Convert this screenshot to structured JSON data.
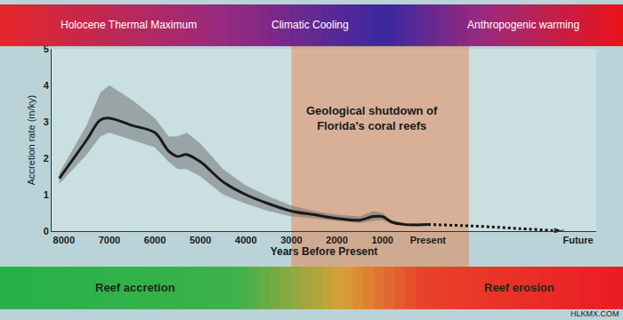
{
  "chart_data": {
    "type": "line",
    "xlabel": "Years Before Present",
    "ylabel": "Accretion rate (m/ky)",
    "xlim": [
      8270,
      -3700
    ],
    "xticks": [
      8000,
      7000,
      6000,
      5000,
      4000,
      3000,
      2000,
      1000,
      {
        "value": 0,
        "label": "Present"
      },
      {
        "value": -3300,
        "label": "Future"
      }
    ],
    "ylim": [
      0,
      5
    ],
    "yticks": [
      0,
      1,
      2,
      3,
      4,
      5
    ],
    "grid": false,
    "series": [
      {
        "color": "#1a1a1a",
        "x": [
          8100,
          7500,
          7200,
          7000,
          6500,
          6000,
          5700,
          5500,
          5300,
          5000,
          4500,
          4000,
          3500,
          3000,
          2500,
          2000,
          1500,
          1200,
          1000,
          800,
          500,
          200,
          0
        ],
        "values": [
          1.45,
          2.5,
          3.05,
          3.1,
          2.9,
          2.7,
          2.2,
          2.05,
          2.1,
          1.9,
          1.35,
          1.0,
          0.75,
          0.55,
          0.45,
          0.35,
          0.3,
          0.4,
          0.4,
          0.25,
          0.18,
          0.17,
          0.18
        ],
        "upper": [
          1.6,
          2.9,
          3.8,
          4.0,
          3.6,
          3.1,
          2.6,
          2.6,
          2.7,
          2.4,
          1.7,
          1.25,
          0.95,
          0.7,
          0.55,
          0.45,
          0.4,
          0.55,
          0.5,
          0.3,
          0.22,
          0.2,
          0.2
        ],
        "lower": [
          1.3,
          2.1,
          2.6,
          2.7,
          2.5,
          2.3,
          1.9,
          1.7,
          1.7,
          1.5,
          1.0,
          0.75,
          0.55,
          0.4,
          0.35,
          0.28,
          0.22,
          0.28,
          0.3,
          0.2,
          0.15,
          0.14,
          0.16
        ]
      },
      {
        "color": "#111111",
        "line_style": "dotted",
        "marker": "arrow",
        "x": [
          0,
          -1000,
          -2000,
          -3000
        ],
        "values": [
          0.18,
          0.14,
          0.07,
          0
        ]
      }
    ],
    "shaded_region": {
      "x": [
        3000,
        -900
      ],
      "text": [
        "Geological shutdown of",
        "Florida's coral reefs"
      ]
    },
    "top_labels": [
      "Holocene Thermal Maximum",
      "Climatic Cooling",
      "Anthropogenic warming"
    ],
    "bottom_labels": [
      "Reef accretion",
      "Reef erosion"
    ],
    "watermark": "HLKMX.COM"
  }
}
